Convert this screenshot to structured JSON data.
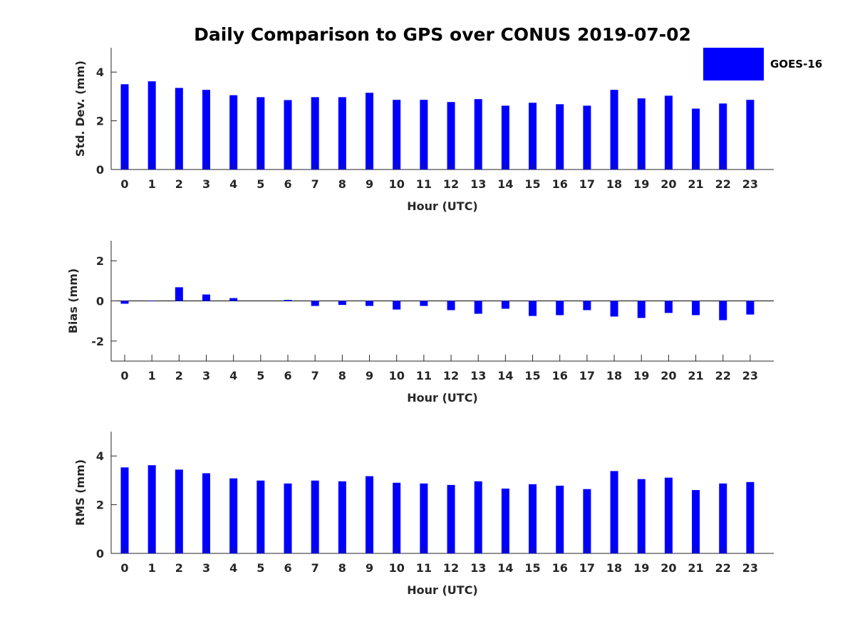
{
  "title": "Daily Comparison to GPS over CONUS 2019-07-02",
  "legend": {
    "label": "GOES-16",
    "color": "#0000ff"
  },
  "chart_data": [
    {
      "type": "bar",
      "xlabel": "Hour (UTC)",
      "ylabel": "Std. Dev. (mm)",
      "categories": [
        "0",
        "1",
        "2",
        "3",
        "4",
        "5",
        "6",
        "7",
        "8",
        "9",
        "10",
        "11",
        "12",
        "13",
        "14",
        "15",
        "16",
        "17",
        "18",
        "19",
        "20",
        "21",
        "22",
        "23"
      ],
      "series": [
        {
          "name": "GOES-16",
          "values": [
            3.5,
            3.62,
            3.35,
            3.27,
            3.05,
            2.97,
            2.85,
            2.97,
            2.97,
            3.15,
            2.86,
            2.86,
            2.77,
            2.89,
            2.62,
            2.74,
            2.68,
            2.62,
            3.27,
            2.92,
            3.03,
            2.5,
            2.71,
            2.86
          ]
        }
      ],
      "ylim": [
        0,
        5
      ],
      "yticks": [
        0,
        2,
        4
      ],
      "ytick_labels": [
        "0",
        "2",
        "4"
      ]
    },
    {
      "type": "bar",
      "xlabel": "Hour (UTC)",
      "ylabel": "Bias (mm)",
      "categories": [
        "0",
        "1",
        "2",
        "3",
        "4",
        "5",
        "6",
        "7",
        "8",
        "9",
        "10",
        "11",
        "12",
        "13",
        "14",
        "15",
        "16",
        "17",
        "18",
        "19",
        "20",
        "21",
        "22",
        "23"
      ],
      "series": [
        {
          "name": "GOES-16",
          "values": [
            -0.14,
            -0.02,
            0.68,
            0.32,
            0.14,
            0.0,
            0.05,
            -0.25,
            -0.2,
            -0.25,
            -0.43,
            -0.25,
            -0.46,
            -0.64,
            -0.39,
            -0.75,
            -0.71,
            -0.46,
            -0.78,
            -0.85,
            -0.6,
            -0.71,
            -0.96,
            -0.68
          ]
        }
      ],
      "ylim": [
        -3,
        3
      ],
      "yticks": [
        -2,
        0,
        2
      ],
      "ytick_labels": [
        "-2",
        "0",
        "2"
      ]
    },
    {
      "type": "bar",
      "xlabel": "Hour (UTC)",
      "ylabel": "RMS (mm)",
      "categories": [
        "0",
        "1",
        "2",
        "3",
        "4",
        "5",
        "6",
        "7",
        "8",
        "9",
        "10",
        "11",
        "12",
        "13",
        "14",
        "15",
        "16",
        "17",
        "18",
        "19",
        "20",
        "21",
        "22",
        "23"
      ],
      "series": [
        {
          "name": "GOES-16",
          "values": [
            3.53,
            3.62,
            3.44,
            3.29,
            3.08,
            2.99,
            2.87,
            2.99,
            2.96,
            3.17,
            2.9,
            2.87,
            2.81,
            2.96,
            2.66,
            2.84,
            2.78,
            2.64,
            3.38,
            3.05,
            3.11,
            2.6,
            2.87,
            2.93
          ]
        }
      ],
      "ylim": [
        0,
        5
      ],
      "yticks": [
        0,
        2,
        4
      ],
      "ytick_labels": [
        "0",
        "2",
        "4"
      ]
    }
  ]
}
